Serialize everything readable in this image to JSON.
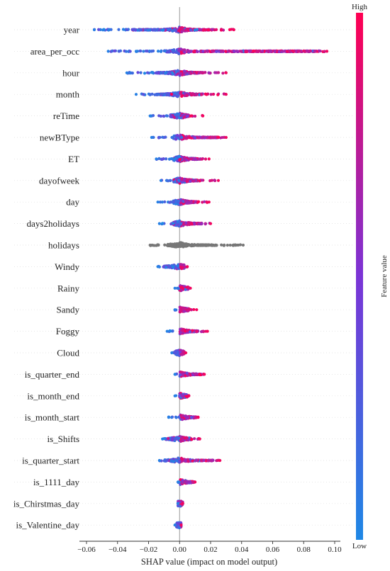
{
  "chart_data": {
    "type": "scatter",
    "subtype": "shap-beeswarm",
    "xlabel": "SHAP value (impact on model output)",
    "xlim": [
      -0.062,
      0.1
    ],
    "xticks": [
      -0.06,
      -0.04,
      -0.02,
      0.0,
      0.02,
      0.04,
      0.06,
      0.08,
      0.1
    ],
    "xtick_labels": [
      "−0.06",
      "−0.04",
      "−0.02",
      "0.00",
      "0.02",
      "0.04",
      "0.06",
      "0.08",
      "0.10"
    ],
    "colorbar": {
      "label": "Feature value",
      "high_label": "High",
      "low_label": "Low",
      "low_color": "#1e88e5",
      "high_color": "#ff0052"
    },
    "colors": {
      "missing": "#777777",
      "zero_line": "#999999"
    },
    "grid": false,
    "features": [
      {
        "name": "year",
        "min": -0.055,
        "max": 0.035,
        "dense": [
          -0.03,
          0.02
        ]
      },
      {
        "name": "area_per_occ",
        "min": -0.046,
        "max": 0.095,
        "dense": [
          -0.01,
          0.09
        ]
      },
      {
        "name": "hour",
        "min": -0.034,
        "max": 0.03,
        "dense": [
          -0.015,
          0.015
        ]
      },
      {
        "name": "month",
        "min": -0.028,
        "max": 0.03,
        "dense": [
          -0.015,
          0.015
        ]
      },
      {
        "name": "reTime",
        "min": -0.019,
        "max": 0.015,
        "dense": [
          -0.006,
          0.006
        ]
      },
      {
        "name": "newBType",
        "min": -0.018,
        "max": 0.03,
        "dense": [
          -0.004,
          0.025
        ]
      },
      {
        "name": "ET",
        "min": -0.015,
        "max": 0.019,
        "dense": [
          -0.004,
          0.012
        ]
      },
      {
        "name": "dayofweek",
        "min": -0.012,
        "max": 0.025,
        "dense": [
          -0.004,
          0.012
        ]
      },
      {
        "name": "day",
        "min": -0.014,
        "max": 0.019,
        "dense": [
          -0.004,
          0.012
        ]
      },
      {
        "name": "days2holidays",
        "min": -0.013,
        "max": 0.02,
        "dense": [
          -0.004,
          0.015
        ]
      },
      {
        "name": "holidays",
        "min": -0.019,
        "max": 0.041,
        "dense": [
          -0.008,
          0.024
        ]
      },
      {
        "name": "Windy",
        "min": -0.014,
        "max": 0.005,
        "dense": [
          -0.01,
          0.003
        ]
      },
      {
        "name": "Rainy",
        "min": -0.003,
        "max": 0.007,
        "dense": [
          0.0,
          0.006
        ]
      },
      {
        "name": "Sandy",
        "min": -0.003,
        "max": 0.011,
        "dense": [
          0.0,
          0.006
        ]
      },
      {
        "name": "Foggy",
        "min": -0.008,
        "max": 0.018,
        "dense": [
          0.0,
          0.012
        ]
      },
      {
        "name": "Cloud",
        "min": -0.005,
        "max": 0.004,
        "dense": [
          -0.003,
          0.003
        ]
      },
      {
        "name": "is_quarter_end",
        "min": -0.003,
        "max": 0.016,
        "dense": [
          0.0,
          0.014
        ]
      },
      {
        "name": "is_month_end",
        "min": -0.003,
        "max": 0.006,
        "dense": [
          0.0,
          0.005
        ]
      },
      {
        "name": "is_month_start",
        "min": -0.007,
        "max": 0.012,
        "dense": [
          0.0,
          0.011
        ]
      },
      {
        "name": "is_Shifts",
        "min": -0.011,
        "max": 0.013,
        "dense": [
          -0.009,
          0.008
        ]
      },
      {
        "name": "is_quarter_start",
        "min": -0.013,
        "max": 0.026,
        "dense": [
          -0.01,
          0.022
        ]
      },
      {
        "name": "is_1111_day",
        "min": -0.001,
        "max": 0.01,
        "dense": [
          0.0,
          0.009
        ]
      },
      {
        "name": "is_Chirstmas_day",
        "min": -0.001,
        "max": 0.002,
        "dense": [
          -0.001,
          0.002
        ]
      },
      {
        "name": "is_Valentine_day",
        "min": -0.003,
        "max": 0.001,
        "dense": [
          -0.002,
          0.001
        ]
      }
    ]
  }
}
